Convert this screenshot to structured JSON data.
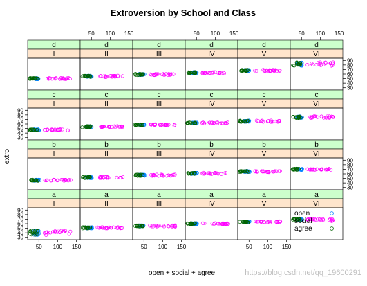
{
  "title": "Extroversion by School and Class",
  "watermark": "https://blog.csdn.net/qq_19600291",
  "chart_data": {
    "type": "scatter",
    "title": "Extroversion by School and Class",
    "xlabel": "open + social + agree",
    "ylabel": "extro",
    "xlim": [
      20,
      160
    ],
    "ylim": [
      25,
      95
    ],
    "x_ticks": [
      50,
      100,
      150
    ],
    "y_ticks": [
      30,
      40,
      50,
      60,
      70,
      80,
      90
    ],
    "grid": false,
    "layout": {
      "columns": 6,
      "rows": 4
    },
    "schools": [
      "I",
      "II",
      "III",
      "IV",
      "V",
      "VI"
    ],
    "classes": [
      "d",
      "c",
      "b",
      "a"
    ],
    "legend": {
      "placement": "inside-bottom-right-panel",
      "entries": [
        {
          "name": "open",
          "color": "#0080ff"
        },
        {
          "name": "social",
          "color": "#ff00ff"
        },
        {
          "name": "agree",
          "color": "#006400"
        }
      ]
    },
    "series": [
      {
        "name": "open",
        "color": "#0080ff",
        "x_range": [
          37,
          52
        ]
      },
      {
        "name": "social",
        "color": "#ff00ff",
        "x_range": [
          65,
          135
        ]
      },
      {
        "name": "agree",
        "color": "#006400",
        "x_range": [
          25,
          48
        ]
      }
    ],
    "panels": [
      {
        "school": "I",
        "class": "d",
        "y": 50,
        "spread": 1.5
      },
      {
        "school": "II",
        "class": "d",
        "y": 55,
        "spread": 1.5
      },
      {
        "school": "III",
        "class": "d",
        "y": 59,
        "spread": 1.5
      },
      {
        "school": "IV",
        "class": "d",
        "y": 63,
        "spread": 1.5
      },
      {
        "school": "V",
        "class": "d",
        "y": 68,
        "spread": 1.5
      },
      {
        "school": "VI",
        "class": "d",
        "y": 82,
        "spread": 4
      },
      {
        "school": "I",
        "class": "c",
        "y": 47,
        "spread": 1.5
      },
      {
        "school": "II",
        "class": "c",
        "y": 54,
        "spread": 1.5
      },
      {
        "school": "III",
        "class": "c",
        "y": 58,
        "spread": 1.5
      },
      {
        "school": "IV",
        "class": "c",
        "y": 62,
        "spread": 1.5
      },
      {
        "school": "V",
        "class": "c",
        "y": 66,
        "spread": 1.5
      },
      {
        "school": "VI",
        "class": "c",
        "y": 75,
        "spread": 2
      },
      {
        "school": "I",
        "class": "b",
        "y": 46,
        "spread": 1.5
      },
      {
        "school": "II",
        "class": "b",
        "y": 52,
        "spread": 1.5
      },
      {
        "school": "III",
        "class": "b",
        "y": 57,
        "spread": 1.5
      },
      {
        "school": "IV",
        "class": "b",
        "y": 61,
        "spread": 1.5
      },
      {
        "school": "V",
        "class": "b",
        "y": 65,
        "spread": 1.5
      },
      {
        "school": "VI",
        "class": "b",
        "y": 70,
        "spread": 1.5
      },
      {
        "school": "I",
        "class": "a",
        "y": 40,
        "spread": 5
      },
      {
        "school": "II",
        "class": "a",
        "y": 51,
        "spread": 1.5
      },
      {
        "school": "III",
        "class": "a",
        "y": 55,
        "spread": 1.5
      },
      {
        "school": "IV",
        "class": "a",
        "y": 60,
        "spread": 1.5
      },
      {
        "school": "V",
        "class": "a",
        "y": 64,
        "spread": 1.5
      },
      {
        "school": "VI",
        "class": "a",
        "y": 69,
        "spread": 1.5
      }
    ]
  }
}
